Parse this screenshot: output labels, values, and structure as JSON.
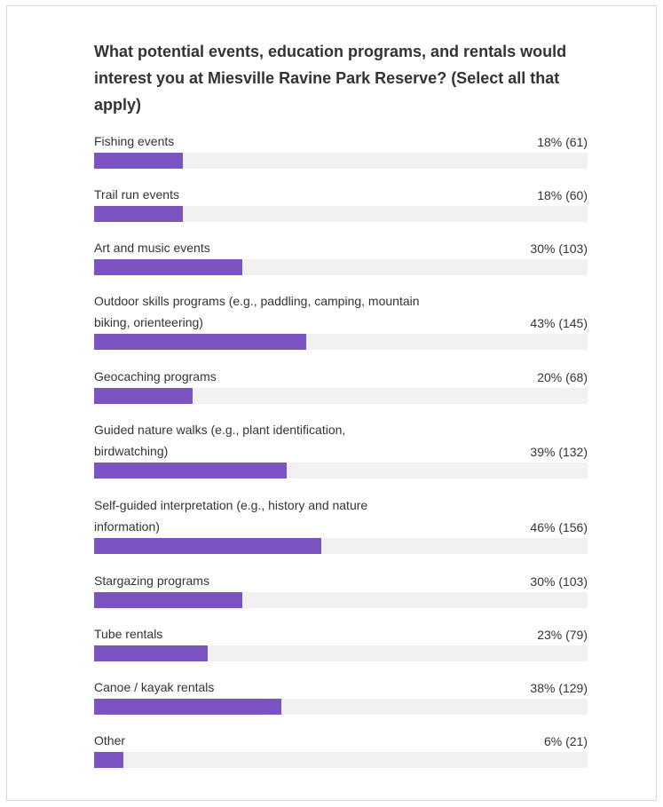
{
  "chart_data": {
    "type": "bar",
    "orientation": "horizontal",
    "title": "What potential events, education programs, and rentals would interest you at Miesville Ravine Park Reserve? (Select all that apply)",
    "bar_color": "#7b54c1",
    "track_color": "#f1f1f1",
    "xlim": [
      0,
      100
    ],
    "items": [
      {
        "label": "Fishing events",
        "value_text": "18% (61)",
        "percent": 18,
        "count": 61
      },
      {
        "label": "Trail run events",
        "value_text": "18% (60)",
        "percent": 18,
        "count": 60
      },
      {
        "label": "Art and music events",
        "value_text": "30% (103)",
        "percent": 30,
        "count": 103
      },
      {
        "label": "Outdoor skills programs (e.g., paddling, camping, mountain\nbiking, orienteering)",
        "value_text": "43% (145)",
        "percent": 43,
        "count": 145
      },
      {
        "label": "Geocaching programs",
        "value_text": "20% (68)",
        "percent": 20,
        "count": 68
      },
      {
        "label": "Guided nature walks (e.g., plant identification,\nbirdwatching)",
        "value_text": "39% (132)",
        "percent": 39,
        "count": 132
      },
      {
        "label": "Self-guided interpretation (e.g., history and nature\ninformation)",
        "value_text": "46% (156)",
        "percent": 46,
        "count": 156
      },
      {
        "label": "Stargazing programs",
        "value_text": "30% (103)",
        "percent": 30,
        "count": 103
      },
      {
        "label": "Tube rentals",
        "value_text": "23% (79)",
        "percent": 23,
        "count": 79
      },
      {
        "label": "Canoe / kayak rentals",
        "value_text": "38% (129)",
        "percent": 38,
        "count": 129
      },
      {
        "label": "Other",
        "value_text": "6% (21)",
        "percent": 6,
        "count": 21
      }
    ]
  }
}
